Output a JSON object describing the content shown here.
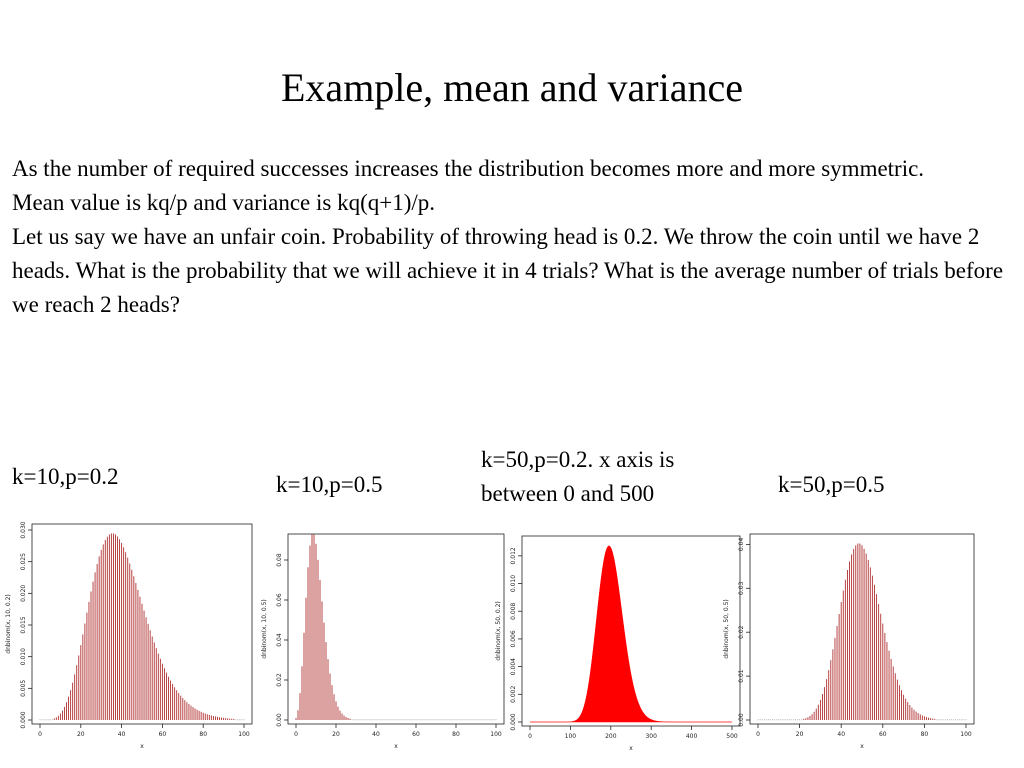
{
  "slide": {
    "title": "Example, mean and variance",
    "paragraphs": [
      "As the number of required successes increases the distribution becomes more and more symmetric.",
      "Mean value is  kq/p and variance is kq(q+1)/p.",
      "Let us say we have an unfair coin. Probability of throwing  head is 0.2. We throw the coin until we have 2 heads. What is the probability that we will achieve it in 4 trials? What is the average number of trials before we reach 2 heads?"
    ],
    "captions": [
      "k=10,p=0.2",
      "k=10,p=0.5",
      "k=50,p=0.2. x axis is between 0 and 500",
      "k=50,p=0.5"
    ]
  },
  "chart_data": [
    {
      "type": "bar",
      "title": "",
      "xlabel": "x",
      "ylabel": "dnbinom(x, 10, 0.2)",
      "k": 10,
      "p": 0.2,
      "x": [
        0,
        100
      ],
      "xlim": [
        0,
        100
      ],
      "ylim": [
        0,
        0.03
      ],
      "xticks": [
        "0",
        "20",
        "40",
        "60",
        "80",
        "100"
      ],
      "yticks": [
        "0.000",
        "0.005",
        "0.010",
        "0.015",
        "0.020",
        "0.025",
        "0.030"
      ],
      "color": "#b03030"
    },
    {
      "type": "bar",
      "title": "",
      "xlabel": "x",
      "ylabel": "dnbinom(x, 10, 0.5)",
      "k": 10,
      "p": 0.5,
      "x": [
        0,
        100
      ],
      "xlim": [
        0,
        100
      ],
      "ylim": [
        0,
        0.09
      ],
      "xticks": [
        "0",
        "20",
        "40",
        "60",
        "80",
        "100"
      ],
      "yticks": [
        "0.00",
        "0.02",
        "0.04",
        "0.06",
        "0.08"
      ],
      "color": "#b03030"
    },
    {
      "type": "area",
      "title": "",
      "xlabel": "x",
      "ylabel": "dnbinom(x, 50, 0.2)",
      "k": 50,
      "p": 0.2,
      "x": [
        0,
        500
      ],
      "xlim": [
        0,
        500
      ],
      "ylim": [
        0,
        0.013
      ],
      "xticks": [
        "0",
        "100",
        "200",
        "300",
        "400",
        "500"
      ],
      "yticks": [
        "0.000",
        "0.002",
        "0.004",
        "0.006",
        "0.008",
        "0.010",
        "0.012"
      ],
      "color": "#ff0000"
    },
    {
      "type": "bar",
      "title": "",
      "xlabel": "x",
      "ylabel": "dnbinom(x, 50, 0.5)",
      "k": 50,
      "p": 0.5,
      "x": [
        0,
        100
      ],
      "xlim": [
        0,
        100
      ],
      "ylim": [
        0,
        0.041
      ],
      "xticks": [
        "0",
        "20",
        "40",
        "60",
        "80",
        "100"
      ],
      "yticks": [
        "0.00",
        "0.01",
        "0.02",
        "0.03",
        "0.04"
      ],
      "color": "#b03030"
    }
  ]
}
